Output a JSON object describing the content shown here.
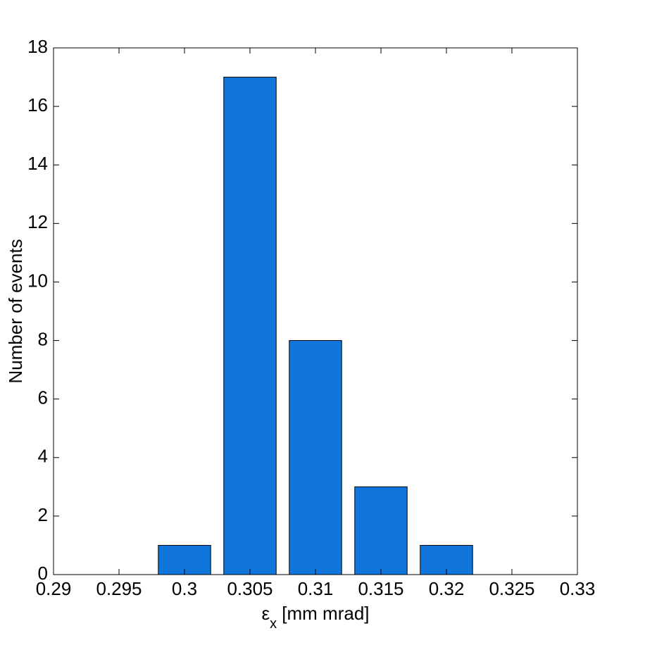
{
  "chart_data": {
    "type": "bar",
    "x_label": {
      "symbol": "ε",
      "sub": "x",
      "rest": " [mm mrad]"
    },
    "y_label": "Number of events",
    "x": [
      0.3,
      0.305,
      0.31,
      0.315,
      0.32,
      0.33
    ],
    "values": [
      1,
      17,
      8,
      3,
      1,
      0
    ],
    "color": "#1076db",
    "xlim": [
      0.29,
      0.33
    ],
    "xticks": [
      0.29,
      0.295,
      0.3,
      0.305,
      0.31,
      0.315,
      0.32,
      0.325,
      0.33
    ],
    "ylim": [
      0,
      18
    ],
    "yticks": [
      0,
      2,
      4,
      6,
      8,
      10,
      12,
      14,
      16,
      18
    ],
    "grid": false
  }
}
